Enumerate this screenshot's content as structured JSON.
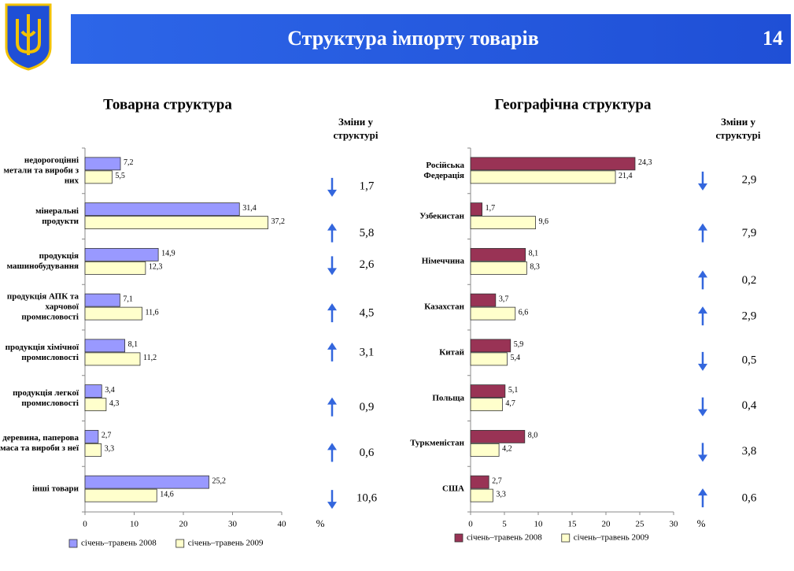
{
  "header": {
    "title": "Структура імпорту товарів",
    "page_number": "14"
  },
  "chart_data": [
    {
      "type": "hbar",
      "title": "Товарна структура",
      "unit": "%",
      "categories": [
        "недорогоцінні метали та вироби з них",
        "мінеральні продукти",
        "продукція машинобудування",
        "продукція АПК та харчової промисловості",
        "продукція хімічної промисловості",
        "продукція легкої промисловості",
        "деревина, паперова маса та вироби з неї",
        "інші товари"
      ],
      "series": [
        {
          "name": "січень–травень 2008",
          "color": "#9999ff",
          "values": [
            7.2,
            31.4,
            14.9,
            7.1,
            8.1,
            3.4,
            2.7,
            25.2
          ],
          "value_labels": [
            "7,2",
            "31,4",
            "14,9",
            "7,1",
            "8,1",
            "3,4",
            "2,7",
            "25,2"
          ]
        },
        {
          "name": "січень–травень 2009",
          "color": "#ffffcc",
          "values": [
            5.5,
            37.2,
            12.3,
            11.6,
            11.2,
            4.3,
            3.3,
            14.6
          ],
          "value_labels": [
            "5,5",
            "37,2",
            "12,3",
            "11,6",
            "11,2",
            "4,3",
            "3,3",
            "14,6"
          ]
        }
      ],
      "xlim": [
        0,
        40
      ],
      "xticks": [
        0,
        10,
        20,
        30,
        40
      ],
      "changes": {
        "title": "Зміни у структурі",
        "values": [
          1.7,
          5.8,
          2.6,
          4.5,
          3.1,
          0.9,
          0.6,
          10.6
        ],
        "value_labels": [
          "1,7",
          "5,8",
          "2,6",
          "4,5",
          "3,1",
          "0,9",
          "0,6",
          "10,6"
        ],
        "directions": [
          "down",
          "up",
          "down",
          "up",
          "up",
          "up",
          "up",
          "down"
        ]
      }
    },
    {
      "type": "hbar",
      "title": "Географічна структура",
      "unit": "%",
      "categories": [
        "Російська Федерація",
        "Узбекистан",
        "Німеччина",
        "Казахстан",
        "Китай",
        "Польща",
        "Туркменістан",
        "США"
      ],
      "series": [
        {
          "name": "січень–травень 2008",
          "color": "#993355",
          "values": [
            24.3,
            1.7,
            8.1,
            3.7,
            5.9,
            5.1,
            8.0,
            2.7
          ],
          "value_labels": [
            "24,3",
            "1,7",
            "8,1",
            "3,7",
            "5,9",
            "5,1",
            "8,0",
            "2,7"
          ]
        },
        {
          "name": "січень–травень 2009",
          "color": "#ffffcc",
          "values": [
            21.4,
            9.6,
            8.3,
            6.6,
            5.4,
            4.7,
            4.2,
            3.3
          ],
          "value_labels": [
            "21,4",
            "9,6",
            "8,3",
            "6,6",
            "5,4",
            "4,7",
            "4,2",
            "3,3"
          ]
        }
      ],
      "xlim": [
        0,
        30
      ],
      "xticks": [
        0,
        5,
        10,
        15,
        20,
        25,
        30
      ],
      "changes": {
        "title": "Зміни у структурі",
        "values": [
          2.9,
          7.9,
          0.2,
          2.9,
          0.5,
          0.4,
          3.8,
          0.6
        ],
        "value_labels": [
          "2,9",
          "7,9",
          "0,2",
          "2,9",
          "0,5",
          "0,4",
          "3,8",
          "0,6"
        ],
        "directions": [
          "down",
          "up",
          "up",
          "up",
          "down",
          "down",
          "down",
          "up"
        ]
      }
    }
  ]
}
